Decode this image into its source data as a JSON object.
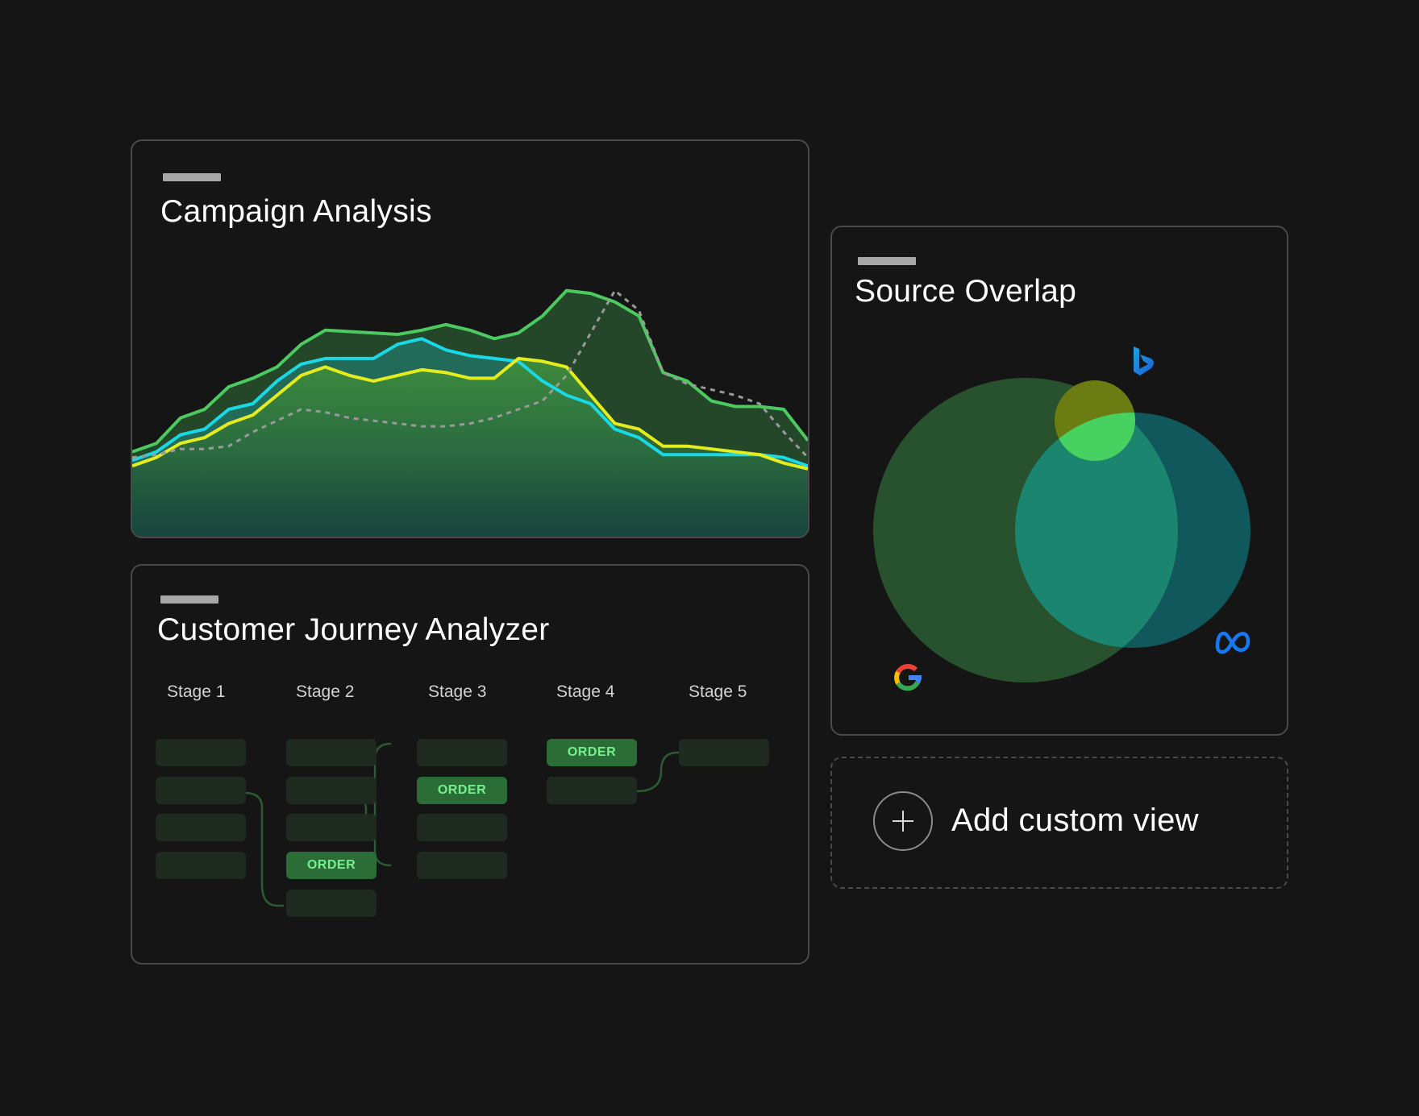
{
  "campaign_panel": {
    "title": "Campaign Analysis"
  },
  "chart_data": {
    "type": "line",
    "title": "Campaign Analysis",
    "xlim": [
      0,
      28
    ],
    "ylim": [
      0,
      100
    ],
    "grid": false,
    "legend": "none",
    "x": [
      0,
      1,
      2,
      3,
      4,
      5,
      6,
      7,
      8,
      9,
      10,
      11,
      12,
      13,
      14,
      15,
      16,
      17,
      18,
      19,
      20,
      21,
      22,
      23,
      24,
      25,
      26,
      27,
      28
    ],
    "series": [
      {
        "color": "#4cc95f",
        "fill": true,
        "style": "solid",
        "values": [
          30,
          33,
          42,
          45,
          53,
          56,
          60,
          68,
          73,
          72.5,
          72,
          71.5,
          73,
          75,
          73,
          70,
          72,
          78,
          87,
          86,
          83,
          78,
          58,
          55,
          48,
          46,
          46,
          45,
          34
        ]
      },
      {
        "color": "#1ad9e6",
        "fill": true,
        "style": "solid",
        "values": [
          27,
          30,
          36,
          38,
          45,
          47,
          55,
          61,
          63,
          63,
          63,
          68,
          70,
          66,
          64,
          63,
          62,
          55,
          50,
          47,
          38,
          35,
          29,
          29,
          29,
          29,
          29,
          28,
          25
        ]
      },
      {
        "color": "#e5ec1e",
        "fill": true,
        "style": "solid",
        "values": [
          25,
          28,
          33,
          35,
          40,
          43,
          50,
          57,
          60,
          57,
          55,
          57,
          59,
          58,
          56,
          56,
          63,
          62,
          60,
          50,
          40,
          38,
          32,
          32,
          31,
          30,
          29,
          26,
          24
        ]
      },
      {
        "color": "#9a9a9a",
        "fill": false,
        "style": "dashed",
        "values": [
          28,
          29,
          31,
          31,
          32,
          37,
          41,
          45,
          44,
          42,
          41,
          40,
          39,
          39,
          40,
          42,
          45,
          48,
          57,
          72,
          87,
          80,
          58,
          54,
          52,
          50,
          47,
          37,
          28
        ]
      }
    ]
  },
  "journey_panel": {
    "title": "Customer Journey Analyzer",
    "stages": [
      "Stage 1",
      "Stage 2",
      "Stage 3",
      "Stage 4",
      "Stage 5"
    ],
    "order_label": "ORDER",
    "colors": {
      "box": "#1f2b21",
      "order_box": "#2a6d37",
      "order_text": "#74f18c",
      "link": "#2c5a33"
    }
  },
  "overlap_panel": {
    "title": "Source Overlap",
    "sources": [
      {
        "icon": "google-logo-icon",
        "color": "#2f6b2f"
      },
      {
        "icon": "meta-logo-icon",
        "color": "#0f6d7a"
      },
      {
        "icon": "bing-logo-icon",
        "color": "#6b8a10"
      }
    ]
  },
  "add_view": {
    "label": "Add custom view",
    "icon": "plus-circle-icon"
  }
}
